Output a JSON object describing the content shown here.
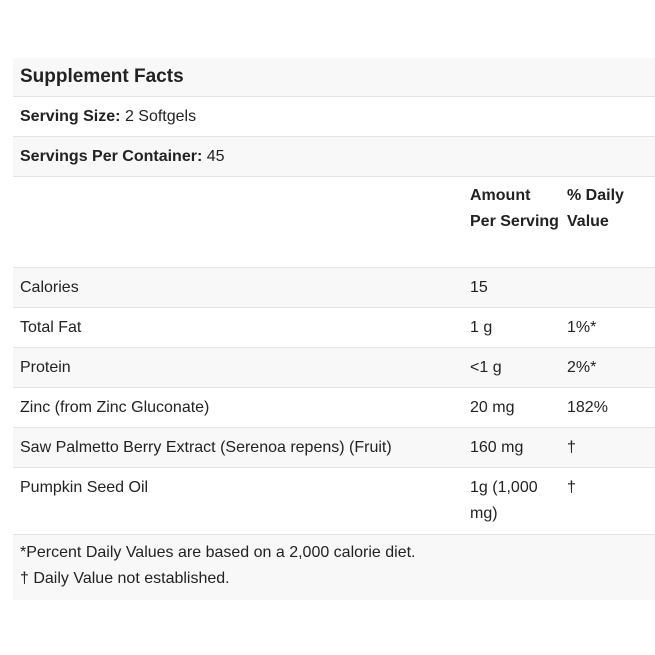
{
  "title": "Supplement Facts",
  "serving_size": {
    "label": "Serving Size:",
    "value": "2 Softgels"
  },
  "servings_per_container": {
    "label": "Servings Per Container:",
    "value": "45"
  },
  "headers": {
    "amount": "Amount Per Serving",
    "dv": "% Daily Value"
  },
  "rows": [
    {
      "name": "Calories",
      "amount": "15",
      "dv": ""
    },
    {
      "name": "Total Fat",
      "amount": "1 g",
      "dv": "1%*"
    },
    {
      "name": "Protein",
      "amount": "<1 g",
      "dv": "2%*"
    },
    {
      "name": "Zinc (from Zinc Gluconate)",
      "amount": "20 mg",
      "dv": "182%"
    },
    {
      "name": "Saw Palmetto Berry Extract (Serenoa repens) (Fruit)",
      "amount": "160 mg",
      "dv": "†"
    },
    {
      "name": "Pumpkin Seed Oil",
      "amount": "1g (1,000 mg)",
      "dv": "†"
    }
  ],
  "footnotes": [
    "*Percent Daily Values are based on a 2,000 calorie diet.",
    "† Daily Value not established."
  ]
}
